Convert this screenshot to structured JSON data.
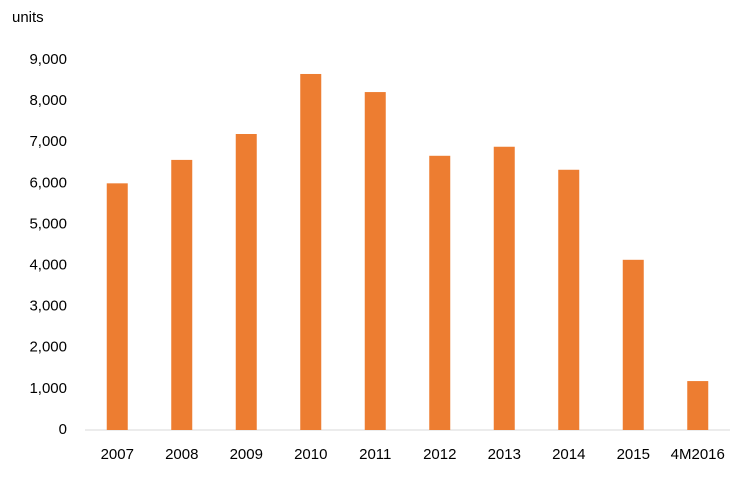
{
  "chart_data": {
    "type": "bar",
    "y_label": "units",
    "categories": [
      "2007",
      "2008",
      "2009",
      "2010",
      "2011",
      "2012",
      "2013",
      "2014",
      "2015",
      "4M2016"
    ],
    "values": [
      6000,
      6570,
      7200,
      8660,
      8220,
      6670,
      6890,
      6330,
      4140,
      1190
    ],
    "color": "#ed7d31",
    "ylim": [
      0,
      9000
    ],
    "yticks": [
      0,
      {
        "value": 1000,
        "label": "1,000"
      },
      {
        "value": 2000,
        "label": "2,000"
      },
      {
        "value": 3000,
        "label": "3,000"
      },
      {
        "value": 4000,
        "label": "4,000"
      },
      {
        "value": 5000,
        "label": "5,000"
      },
      {
        "value": 6000,
        "label": "6,000"
      },
      {
        "value": 7000,
        "label": "7,000"
      },
      {
        "value": 8000,
        "label": "8,000"
      },
      {
        "value": 9000,
        "label": "9,000"
      }
    ],
    "grid": false
  }
}
